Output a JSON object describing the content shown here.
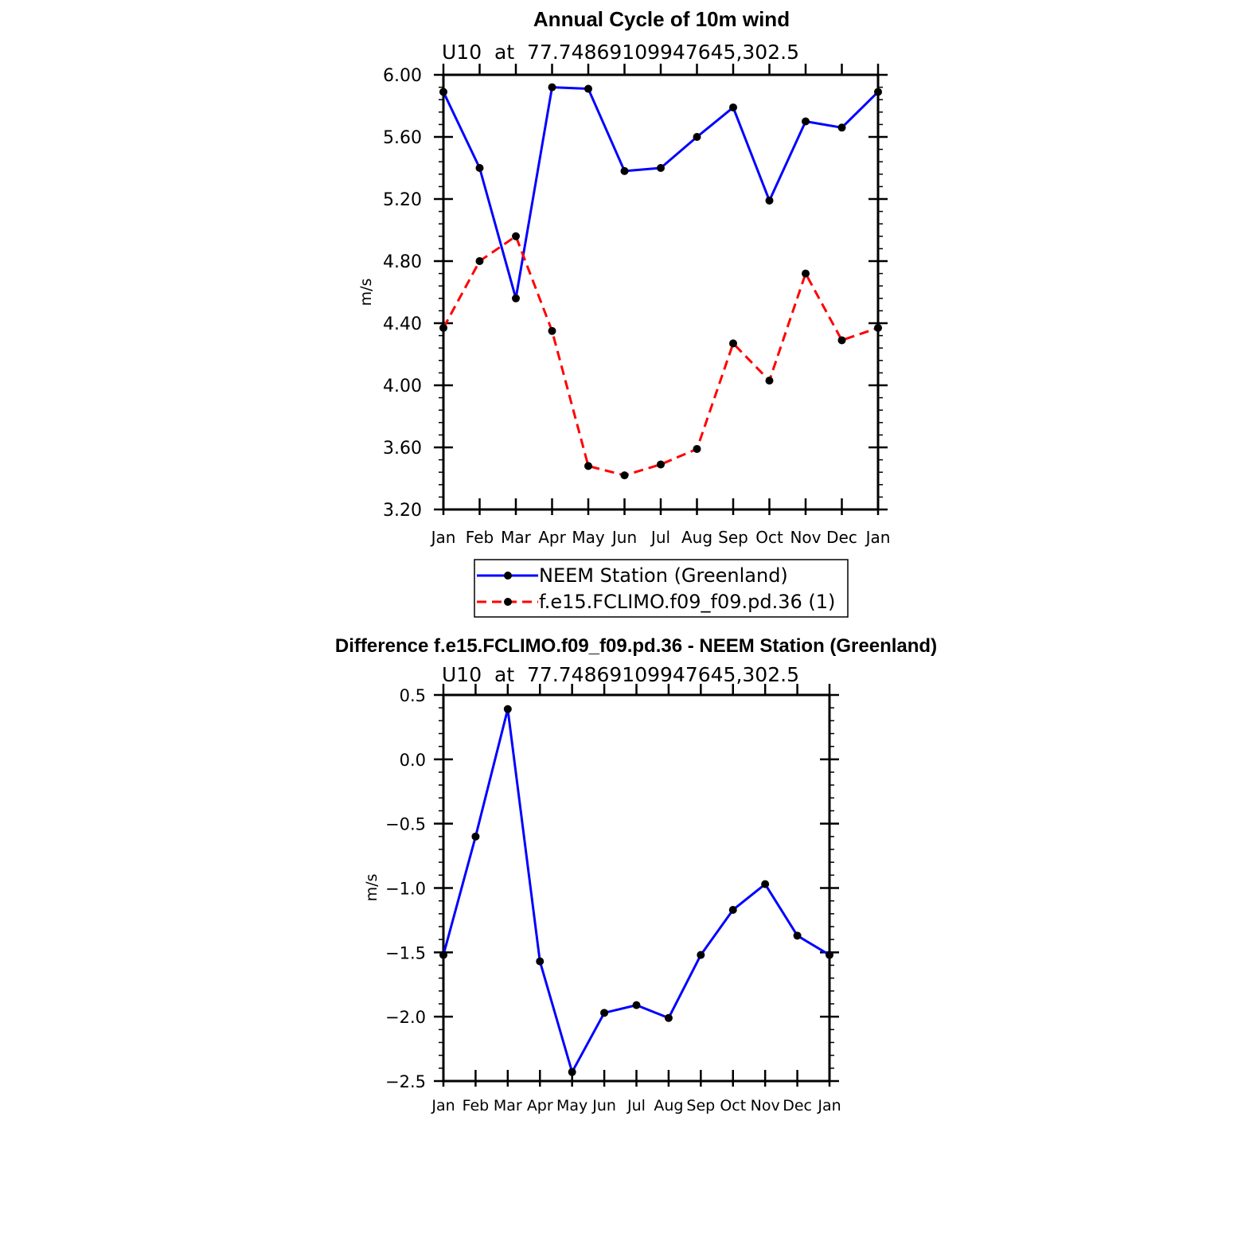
{
  "chart_data": [
    {
      "type": "line",
      "title": "Annual Cycle of 10m wind",
      "subtitle": "U10  at  77.74869109947645,302.5",
      "xlabel": "",
      "ylabel": "m/s",
      "categories": [
        "Jan",
        "Feb",
        "Mar",
        "Apr",
        "May",
        "Jun",
        "Jul",
        "Aug",
        "Sep",
        "Oct",
        "Nov",
        "Dec",
        "Jan"
      ],
      "ylim": [
        3.2,
        6.0
      ],
      "yticks": [
        3.2,
        3.6,
        4.0,
        4.4,
        4.8,
        5.2,
        5.6,
        6.0
      ],
      "ytick_labels": [
        "3.20",
        "3.60",
        "4.00",
        "4.40",
        "4.80",
        "5.20",
        "5.60",
        "6.00"
      ],
      "legend_position": "below",
      "series": [
        {
          "name": "NEEM Station (Greenland)",
          "color": "#0000ff",
          "dash": "solid",
          "values": [
            5.89,
            5.4,
            4.56,
            5.92,
            5.91,
            5.38,
            5.4,
            5.6,
            5.79,
            5.19,
            5.7,
            5.66,
            5.89
          ]
        },
        {
          "name": "f.e15.FCLIMO.f09_f09.pd.36 (1)",
          "color": "#ff0000",
          "dash": "dashed",
          "values": [
            4.37,
            4.8,
            4.96,
            4.35,
            3.48,
            3.42,
            3.49,
            3.59,
            4.27,
            4.03,
            4.72,
            4.29,
            4.37
          ]
        }
      ]
    },
    {
      "type": "line",
      "title": "Difference f.e15.FCLIMO.f09_f09.pd.36 - NEEM Station (Greenland)",
      "subtitle": "U10  at  77.74869109947645,302.5",
      "xlabel": "",
      "ylabel": "m/s",
      "categories": [
        "Jan",
        "Feb",
        "Mar",
        "Apr",
        "May",
        "Jun",
        "Jul",
        "Aug",
        "Sep",
        "Oct",
        "Nov",
        "Dec",
        "Jan"
      ],
      "ylim": [
        -2.5,
        0.5
      ],
      "yticks": [
        -2.5,
        -2.0,
        -1.5,
        -1.0,
        -0.5,
        0.0,
        0.5
      ],
      "ytick_labels": [
        "−2.5",
        "−2.0",
        "−1.5",
        "−1.0",
        "−0.5",
        "0.0",
        "0.5"
      ],
      "series": [
        {
          "name": "Difference",
          "color": "#0000ff",
          "dash": "solid",
          "values": [
            -1.52,
            -0.6,
            0.39,
            -1.57,
            -2.43,
            -1.97,
            -1.91,
            -2.01,
            -1.52,
            -1.17,
            -0.97,
            -1.37,
            -1.52
          ]
        }
      ]
    }
  ]
}
